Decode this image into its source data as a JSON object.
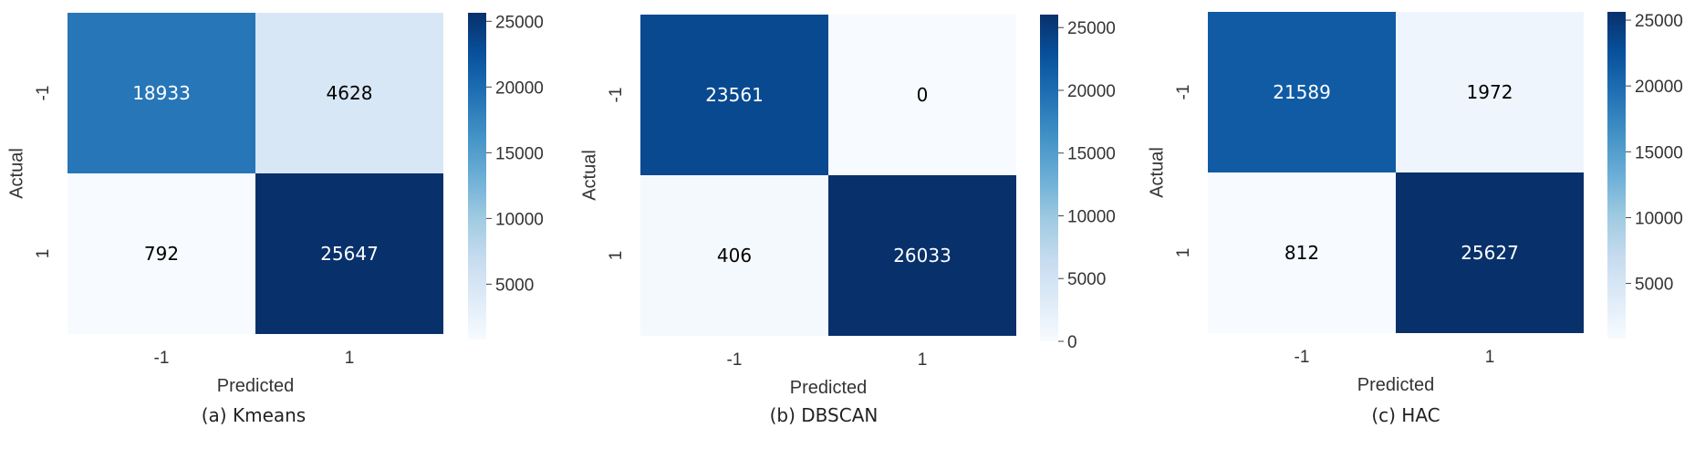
{
  "chart_data": [
    {
      "type": "heatmap",
      "caption": "(a) Kmeans",
      "xlabel": "Predicted",
      "ylabel": "Actual",
      "x_tick_labels": [
        "-1",
        "1"
      ],
      "y_tick_labels": [
        "-1",
        "1"
      ],
      "values": [
        [
          18933,
          4628
        ],
        [
          792,
          25647
        ]
      ],
      "colormap": "Blues",
      "vmin": 792,
      "vmax": 25647,
      "colorbar_ticks": [
        5000,
        10000,
        15000,
        20000,
        25000
      ]
    },
    {
      "type": "heatmap",
      "caption": "(b) DBSCAN",
      "xlabel": "Predicted",
      "ylabel": "Actual",
      "x_tick_labels": [
        "-1",
        "1"
      ],
      "y_tick_labels": [
        "-1",
        "1"
      ],
      "values": [
        [
          23561,
          0
        ],
        [
          406,
          26033
        ]
      ],
      "colormap": "Blues",
      "vmin": 0,
      "vmax": 26033,
      "colorbar_ticks": [
        0,
        5000,
        10000,
        15000,
        20000,
        25000
      ]
    },
    {
      "type": "heatmap",
      "caption": "(c) HAC",
      "xlabel": "Predicted",
      "ylabel": "Actual",
      "x_tick_labels": [
        "-1",
        "1"
      ],
      "y_tick_labels": [
        "-1",
        "1"
      ],
      "values": [
        [
          21589,
          1972
        ],
        [
          812,
          25627
        ]
      ],
      "colormap": "Blues",
      "vmin": 812,
      "vmax": 25627,
      "colorbar_ticks": [
        5000,
        10000,
        15000,
        20000,
        25000
      ]
    }
  ]
}
